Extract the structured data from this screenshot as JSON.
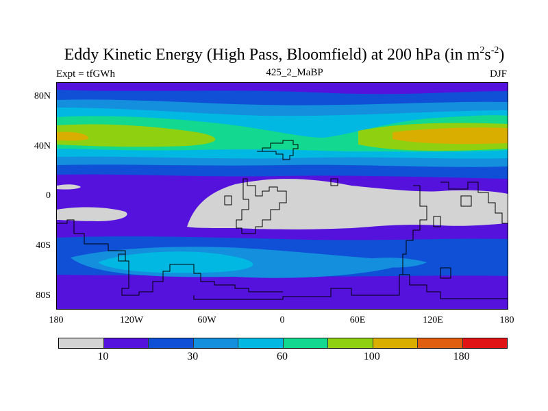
{
  "chart_data": {
    "type": "heatmap",
    "title_main": "Eddy Kinetic Energy (High Pass, Bloomfield) at 200 hPa (in m",
    "title_sup1": "2",
    "title_mid": "s",
    "title_sup2": "-2",
    "title_end": ")",
    "experiment": "Expt = tfGWh",
    "center_label": "425_2_MaBP",
    "season": "DJF",
    "x_ticks": [
      "180",
      "120W",
      "60W",
      "0",
      "60E",
      "120E",
      "180"
    ],
    "x_tick_values": [
      -180,
      -120,
      -60,
      0,
      60,
      120,
      180
    ],
    "y_ticks": [
      "80N",
      "40N",
      "0",
      "40S",
      "80S"
    ],
    "y_tick_values": [
      80,
      40,
      0,
      -40,
      -80
    ],
    "xlim": [
      -180,
      180
    ],
    "ylim": [
      -90,
      90
    ],
    "colorbar": {
      "colors": [
        "#d3d3d3",
        "#5512dc",
        "#1050d6",
        "#148fdd",
        "#00b8e2",
        "#12d890",
        "#8fd010",
        "#d9ae00",
        "#e05e10",
        "#e01414"
      ],
      "labels": [
        "10",
        "30",
        "60",
        "100",
        "180"
      ],
      "label_boundaries": [
        1,
        3,
        5,
        7,
        9
      ]
    }
  }
}
